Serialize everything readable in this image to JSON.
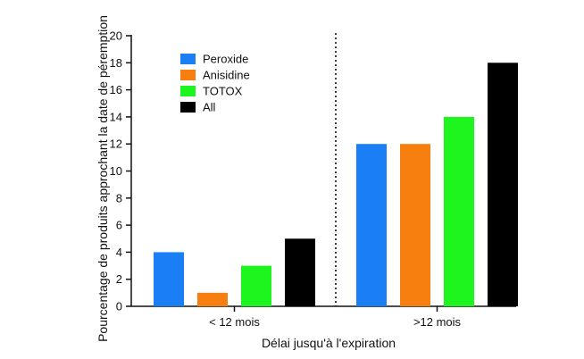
{
  "chart_data": {
    "type": "bar",
    "categories": [
      "< 12 mois",
      ">12 mois"
    ],
    "series": [
      {
        "name": "Peroxide",
        "color": "#1a7ef5",
        "values": [
          4,
          12
        ]
      },
      {
        "name": "Anisidine",
        "color": "#f77f10",
        "values": [
          1,
          12
        ]
      },
      {
        "name": "TOTOX",
        "color": "#1ef51e",
        "values": [
          3,
          14
        ]
      },
      {
        "name": "All",
        "color": "#000000",
        "values": [
          5,
          18
        ]
      }
    ],
    "xlabel": "Délai jusqu'à l'expiration",
    "ylabel": "Pourcentage de produits approchant la date de péremption",
    "ylim": [
      0,
      20
    ],
    "yticks": [
      0,
      2,
      4,
      6,
      8,
      10,
      12,
      14,
      16,
      18,
      20
    ],
    "grid": false,
    "legend_position": "top-left",
    "group_separator": "dotted"
  }
}
